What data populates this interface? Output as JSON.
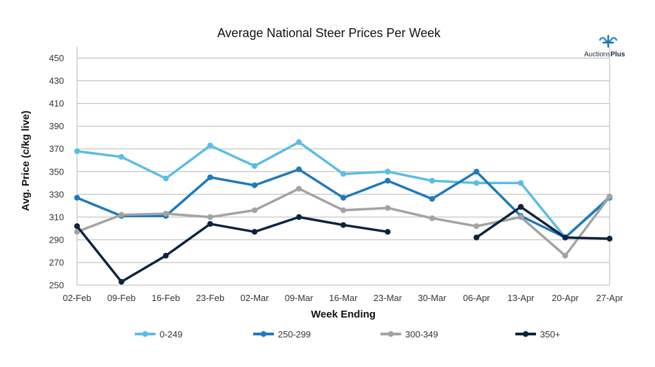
{
  "chart_data": {
    "type": "line",
    "title": "Average National Steer Prices Per Week",
    "xlabel": "Week Ending",
    "ylabel": "Avg. Price (c/kg live)",
    "ylim": [
      250,
      460
    ],
    "yticks": [
      250,
      270,
      290,
      310,
      330,
      350,
      370,
      390,
      410,
      430,
      450
    ],
    "grid": true,
    "legend_position": "bottom",
    "categories": [
      "02-Feb",
      "09-Feb",
      "16-Feb",
      "23-Feb",
      "02-Mar",
      "09-Mar",
      "16-Mar",
      "23-Mar",
      "30-Mar",
      "06-Apr",
      "13-Apr",
      "20-Apr",
      "27-Apr"
    ],
    "series": [
      {
        "name": "0-249",
        "color": "#5bbde4",
        "values": [
          368,
          363,
          344,
          373,
          355,
          376,
          348,
          350,
          342,
          340,
          340,
          292,
          328
        ]
      },
      {
        "name": "250-299",
        "color": "#1f7ab9",
        "values": [
          327,
          311,
          311,
          345,
          338,
          352,
          327,
          342,
          326,
          350,
          311,
          292,
          327
        ]
      },
      {
        "name": "300-349",
        "color": "#a3a3a3",
        "values": [
          297,
          312,
          313,
          310,
          316,
          335,
          316,
          318,
          309,
          302,
          310,
          276,
          328
        ]
      },
      {
        "name": "350+",
        "color": "#0d233f",
        "values": [
          302,
          253,
          276,
          304,
          297,
          310,
          303,
          297,
          null,
          292,
          319,
          292,
          291
        ]
      }
    ]
  },
  "logo": {
    "prefix": "Auctions",
    "suffix": "Plus"
  }
}
